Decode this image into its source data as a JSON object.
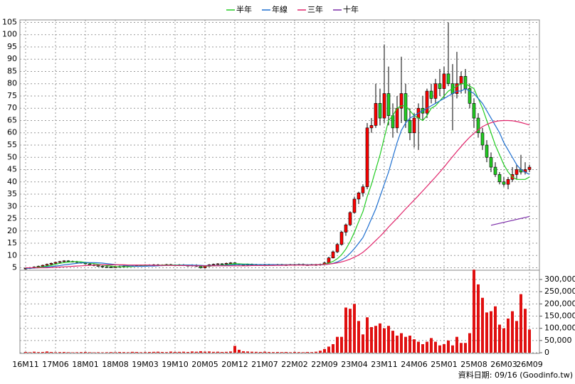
{
  "chart_data": {
    "type": "candlestick",
    "categories": [
      "16M11",
      null,
      null,
      null,
      null,
      null,
      null,
      "17M06",
      null,
      null,
      null,
      null,
      null,
      null,
      "18M01",
      null,
      null,
      null,
      null,
      null,
      null,
      "18M08",
      null,
      null,
      null,
      null,
      null,
      null,
      "19M03",
      null,
      null,
      null,
      null,
      null,
      null,
      "19M10",
      null,
      null,
      null,
      null,
      null,
      null,
      "20M05",
      null,
      null,
      null,
      null,
      null,
      null,
      "20M12",
      null,
      null,
      null,
      null,
      null,
      null,
      "21M07",
      null,
      null,
      null,
      null,
      null,
      null,
      "22M02",
      null,
      null,
      null,
      null,
      null,
      null,
      "22M09",
      null,
      null,
      null,
      null,
      null,
      null,
      "23M04",
      null,
      null,
      null,
      null,
      null,
      null,
      "23M11",
      null,
      null,
      null,
      null,
      null,
      null,
      "24M06",
      null,
      null,
      null,
      null,
      null,
      null,
      "25M01",
      null,
      null,
      null,
      null,
      null,
      null,
      "25M08",
      null,
      null,
      null,
      null,
      null,
      null,
      "26M03",
      null,
      null,
      null,
      null,
      null,
      "26M09"
    ],
    "open": [
      4.6,
      4.8,
      5.0,
      5.3,
      5.6,
      6.0,
      6.4,
      6.8,
      7.2,
      7.5,
      7.8,
      7.6,
      7.5,
      7.2,
      7.0,
      6.6,
      6.2,
      5.9,
      5.6,
      5.4,
      5.3,
      5.2,
      5.4,
      5.5,
      5.6,
      5.7,
      5.8,
      5.9,
      6.0,
      6.1,
      6.0,
      6.2,
      6.0,
      6.1,
      6.3,
      6.1,
      6.0,
      6.2,
      6.0,
      5.8,
      6.1,
      5.6,
      5.0,
      5.6,
      6.2,
      6.4,
      6.6,
      6.5,
      6.8,
      7.0,
      6.5,
      6.3,
      6.2,
      6.4,
      6.3,
      6.2,
      6.1,
      6.3,
      6.2,
      6.2,
      6.3,
      6.1,
      6.2,
      6.3,
      6.2,
      6.4,
      6.1,
      6.2,
      6.3,
      6.1,
      6.4,
      7.0,
      9.0,
      11.5,
      14.5,
      19.5,
      22.5,
      27.5,
      33,
      35.5,
      38,
      62,
      63,
      72,
      66,
      76,
      67,
      62,
      70,
      76,
      65,
      60,
      66,
      70,
      68,
      77,
      74,
      80,
      78,
      84,
      80,
      76,
      80,
      83,
      78,
      72,
      66,
      60,
      55,
      50,
      46,
      43,
      40,
      39,
      41,
      43,
      45,
      44,
      45
    ],
    "high": [
      5.1,
      5.3,
      5.6,
      5.9,
      6.3,
      6.7,
      7.1,
      7.5,
      7.8,
      8.1,
      8.1,
      7.9,
      7.8,
      7.5,
      7.3,
      6.9,
      6.5,
      6.2,
      5.9,
      5.7,
      5.6,
      5.7,
      5.8,
      5.9,
      6.0,
      6.1,
      6.2,
      6.3,
      6.4,
      6.4,
      6.5,
      6.5,
      6.4,
      6.6,
      6.6,
      6.4,
      6.5,
      6.5,
      6.3,
      6.4,
      6.4,
      5.9,
      5.9,
      6.5,
      6.7,
      6.9,
      6.9,
      7.1,
      7.3,
      7.3,
      6.8,
      6.6,
      6.7,
      6.7,
      6.6,
      6.5,
      6.6,
      6.6,
      6.5,
      6.6,
      6.6,
      6.5,
      6.6,
      6.6,
      6.7,
      6.7,
      6.5,
      6.6,
      6.6,
      6.7,
      7.5,
      9.5,
      12,
      15,
      20,
      23,
      28,
      34,
      36,
      39,
      64,
      66,
      80,
      78,
      96,
      87,
      72,
      75,
      91,
      80,
      70,
      68,
      72,
      75,
      78,
      80,
      82,
      86,
      87,
      105,
      88,
      93,
      85,
      86,
      80,
      74,
      68,
      62,
      57,
      52,
      48,
      44,
      42,
      42,
      46,
      47,
      51,
      48,
      47
    ],
    "low": [
      4.3,
      4.5,
      4.7,
      5.0,
      5.3,
      5.7,
      6.1,
      6.5,
      6.9,
      7.2,
      7.3,
      7.2,
      6.9,
      6.7,
      6.3,
      5.9,
      5.6,
      5.3,
      5.1,
      5.0,
      4.9,
      4.9,
      5.1,
      5.2,
      5.3,
      5.4,
      5.5,
      5.6,
      5.7,
      5.7,
      5.7,
      5.7,
      5.7,
      5.8,
      5.8,
      5.7,
      5.7,
      5.7,
      5.5,
      5.5,
      5.3,
      4.7,
      4.7,
      5.3,
      5.9,
      6.1,
      6.2,
      6.2,
      6.5,
      6.2,
      6.0,
      5.9,
      5.9,
      6.0,
      5.9,
      5.8,
      5.8,
      5.9,
      5.9,
      5.9,
      5.8,
      5.8,
      5.9,
      5.9,
      5.9,
      5.8,
      5.8,
      5.9,
      5.8,
      5.8,
      6.2,
      6.8,
      8.8,
      11,
      14,
      18,
      22,
      27,
      31,
      34,
      37,
      60,
      62,
      63,
      64,
      63,
      58,
      60,
      64,
      62,
      57,
      54,
      53,
      65,
      66,
      72,
      72,
      75,
      74,
      79,
      61,
      74,
      76,
      76,
      70,
      62,
      58,
      53,
      48,
      44,
      42,
      39,
      38,
      37,
      40,
      41,
      43,
      43,
      44
    ],
    "close": [
      4.8,
      5.0,
      5.3,
      5.6,
      6.0,
      6.4,
      6.8,
      7.2,
      7.5,
      7.8,
      7.6,
      7.5,
      7.2,
      7.0,
      6.6,
      6.2,
      5.9,
      5.6,
      5.4,
      5.3,
      5.2,
      5.4,
      5.5,
      5.6,
      5.7,
      5.8,
      5.9,
      6.0,
      6.1,
      6.0,
      6.2,
      6.0,
      6.1,
      6.3,
      6.1,
      6.0,
      6.2,
      6.0,
      5.8,
      6.1,
      5.6,
      5.0,
      5.6,
      6.2,
      6.4,
      6.6,
      6.5,
      6.8,
      7.0,
      6.5,
      6.3,
      6.2,
      6.4,
      6.3,
      6.2,
      6.1,
      6.3,
      6.2,
      6.2,
      6.3,
      6.1,
      6.2,
      6.3,
      6.2,
      6.4,
      6.1,
      6.2,
      6.3,
      6.1,
      6.4,
      7.0,
      9.0,
      11.5,
      14.5,
      19.5,
      22.5,
      27.5,
      33,
      35.5,
      38,
      62,
      63,
      72,
      66,
      76,
      67,
      62,
      70,
      76,
      65,
      60,
      66,
      70,
      68,
      77,
      74,
      80,
      78,
      84,
      80,
      76,
      80,
      83,
      78,
      72,
      66,
      60,
      55,
      50,
      46,
      43,
      40,
      39,
      41,
      43,
      45,
      44,
      45,
      46
    ],
    "up_color": "#ff0000",
    "down_color": "#22cc22",
    "ylim": [
      4,
      106
    ],
    "yticks": [
      5,
      10,
      15,
      20,
      25,
      30,
      35,
      40,
      45,
      50,
      55,
      60,
      65,
      70,
      75,
      80,
      85,
      90,
      95,
      100,
      105
    ],
    "grid": true,
    "series": [
      {
        "name": "半年",
        "color": "#22cc22",
        "values": [
          4.8,
          4.9,
          5.0,
          5.2,
          5.4,
          5.7,
          6.0,
          6.4,
          6.8,
          7.1,
          7.3,
          7.5,
          7.5,
          7.4,
          7.2,
          7.0,
          6.7,
          6.4,
          6.1,
          5.9,
          5.7,
          5.5,
          5.4,
          5.4,
          5.4,
          5.5,
          5.6,
          5.7,
          5.8,
          5.9,
          6.0,
          6.0,
          6.1,
          6.1,
          6.1,
          6.1,
          6.1,
          6.1,
          6.1,
          6.0,
          6.0,
          5.8,
          5.7,
          5.7,
          5.8,
          5.9,
          6.0,
          6.2,
          6.5,
          6.6,
          6.6,
          6.5,
          6.5,
          6.4,
          6.3,
          6.3,
          6.3,
          6.2,
          6.2,
          6.2,
          6.2,
          6.2,
          6.2,
          6.2,
          6.2,
          6.2,
          6.2,
          6.2,
          6.2,
          6.3,
          6.4,
          6.9,
          7.6,
          8.7,
          10.3,
          12.6,
          15.7,
          19.5,
          23.8,
          27.9,
          34,
          39,
          45,
          51,
          58,
          65,
          67,
          70,
          71,
          71,
          69,
          67,
          66,
          65,
          67,
          70,
          71,
          73,
          75,
          77,
          78,
          79,
          80,
          80,
          79,
          78,
          74,
          70,
          65,
          60,
          55,
          51,
          47,
          44,
          42,
          41,
          41,
          41,
          42
        ]
      },
      {
        "name": "年線",
        "color": "#1e6fd0",
        "values": [
          4.8,
          4.8,
          4.9,
          5.0,
          5.1,
          5.3,
          5.5,
          5.7,
          5.9,
          6.2,
          6.4,
          6.6,
          6.8,
          7.0,
          7.1,
          7.1,
          7.1,
          7.0,
          6.9,
          6.7,
          6.5,
          6.3,
          6.1,
          6.0,
          5.8,
          5.7,
          5.6,
          5.6,
          5.6,
          5.7,
          5.7,
          5.8,
          5.9,
          5.9,
          6.0,
          6.0,
          6.0,
          6.1,
          6.1,
          6.1,
          6.0,
          6.0,
          5.9,
          5.9,
          5.9,
          5.9,
          5.9,
          6.0,
          6.1,
          6.2,
          6.3,
          6.3,
          6.3,
          6.3,
          6.3,
          6.3,
          6.3,
          6.3,
          6.3,
          6.2,
          6.2,
          6.2,
          6.2,
          6.2,
          6.2,
          6.2,
          6.2,
          6.2,
          6.2,
          6.2,
          6.3,
          6.5,
          6.8,
          7.4,
          8.2,
          9.3,
          10.9,
          12.8,
          15,
          17.3,
          21,
          25,
          29,
          34,
          39,
          44,
          50,
          56,
          61,
          64,
          66,
          67,
          68,
          69,
          70,
          71,
          72,
          73,
          74,
          75,
          76,
          77,
          77,
          78,
          77,
          76,
          74,
          72,
          69,
          66,
          63,
          60,
          56,
          53,
          50,
          47,
          45,
          44,
          43
        ]
      },
      {
        "name": "三年",
        "color": "#e0246a",
        "values": [
          5.0,
          5.0,
          5.0,
          5.0,
          5.0,
          5.0,
          5.1,
          5.2,
          5.3,
          5.4,
          5.5,
          5.6,
          5.7,
          5.8,
          5.9,
          6.0,
          6.1,
          6.1,
          6.2,
          6.2,
          6.2,
          6.2,
          6.2,
          6.2,
          6.1,
          6.1,
          6.1,
          6.1,
          6.1,
          6.1,
          6.0,
          6.0,
          6.0,
          6.0,
          6.0,
          5.9,
          5.9,
          5.9,
          5.9,
          5.8,
          5.8,
          5.8,
          5.8,
          5.8,
          5.8,
          5.8,
          5.8,
          5.8,
          5.8,
          5.8,
          5.8,
          5.8,
          5.8,
          5.9,
          5.9,
          5.9,
          5.9,
          5.9,
          6.0,
          6.0,
          6.0,
          6.1,
          6.1,
          6.1,
          6.1,
          6.1,
          6.1,
          6.1,
          6.2,
          6.2,
          6.3,
          6.5,
          6.7,
          7.0,
          7.4,
          7.9,
          8.5,
          9.3,
          10.2,
          11.3,
          12.8,
          14.4,
          16.1,
          17.8,
          19.6,
          21.6,
          23.4,
          25.2,
          27.1,
          29,
          30.8,
          32.6,
          34.4,
          36.3,
          38.2,
          40.1,
          42,
          44,
          46,
          48.2,
          50.3,
          52.4,
          54.4,
          56.4,
          58.2,
          59.8,
          61.2,
          62.5,
          63.4,
          64.1,
          64.6,
          64.9,
          65.0,
          65.0,
          64.9,
          64.6,
          64.2,
          63.7,
          63.2
        ]
      },
      {
        "name": "十年",
        "color": "#7a2aa8",
        "values": [
          null,
          null,
          null,
          null,
          null,
          null,
          null,
          null,
          null,
          null,
          null,
          null,
          null,
          null,
          null,
          null,
          null,
          null,
          null,
          null,
          null,
          null,
          null,
          null,
          null,
          null,
          null,
          null,
          null,
          null,
          null,
          null,
          null,
          null,
          null,
          null,
          null,
          null,
          null,
          null,
          null,
          null,
          null,
          null,
          null,
          null,
          null,
          null,
          null,
          null,
          null,
          null,
          null,
          null,
          null,
          null,
          null,
          null,
          null,
          null,
          null,
          null,
          null,
          null,
          null,
          null,
          null,
          null,
          null,
          null,
          null,
          null,
          null,
          null,
          null,
          null,
          null,
          null,
          null,
          null,
          null,
          null,
          null,
          null,
          null,
          null,
          null,
          null,
          null,
          null,
          null,
          null,
          null,
          null,
          null,
          null,
          null,
          null,
          null,
          null,
          null,
          null,
          null,
          null,
          null,
          null,
          null,
          null,
          null,
          22.3,
          22.7,
          23.1,
          23.5,
          23.9,
          24.3,
          24.7,
          25.1,
          25.5,
          25.9
        ]
      }
    ],
    "volume": {
      "type": "bar",
      "color": "#e01010",
      "values": [
        3000,
        2000,
        4000,
        2500,
        3000,
        5000,
        3000,
        2000,
        2500,
        3000,
        2000,
        1500,
        2000,
        2500,
        3000,
        2000,
        1500,
        2000,
        1500,
        2000,
        2500,
        2000,
        3000,
        2500,
        2000,
        3500,
        3000,
        2000,
        2500,
        3000,
        3500,
        4000,
        3000,
        2500,
        4500,
        3000,
        3500,
        4000,
        3000,
        5000,
        4000,
        6000,
        4000,
        5000,
        3500,
        4000,
        3000,
        3500,
        5000,
        28000,
        12000,
        6000,
        5000,
        4000,
        3500,
        3000,
        4000,
        3000,
        2500,
        3000,
        2500,
        3000,
        2000,
        3000,
        2500,
        2000,
        3000,
        2500,
        4000,
        8000,
        15000,
        25000,
        35000,
        65000,
        65000,
        185000,
        180000,
        200000,
        130000,
        75000,
        145000,
        105000,
        110000,
        120000,
        100000,
        110000,
        90000,
        70000,
        80000,
        65000,
        70000,
        55000,
        45000,
        35000,
        45000,
        60000,
        45000,
        30000,
        35000,
        50000,
        30000,
        65000,
        40000,
        40000,
        80000,
        340000,
        280000,
        225000,
        165000,
        170000,
        190000,
        115000,
        100000,
        140000,
        170000,
        130000,
        240000,
        180000,
        95000
      ],
      "ylim": [
        0,
        338000
      ],
      "yticks": [
        0,
        {
          "value": 50000,
          "label": "50,000"
        },
        {
          "value": 100000,
          "label": "100,000"
        },
        {
          "value": 150000,
          "label": "150,000"
        },
        {
          "value": 200000,
          "label": "200,000"
        },
        {
          "value": 250000,
          "label": "250,000"
        },
        {
          "value": 300000,
          "label": "300,000"
        }
      ]
    },
    "footer": "資料日期: 09/16 (Goodinfo.tw)"
  }
}
